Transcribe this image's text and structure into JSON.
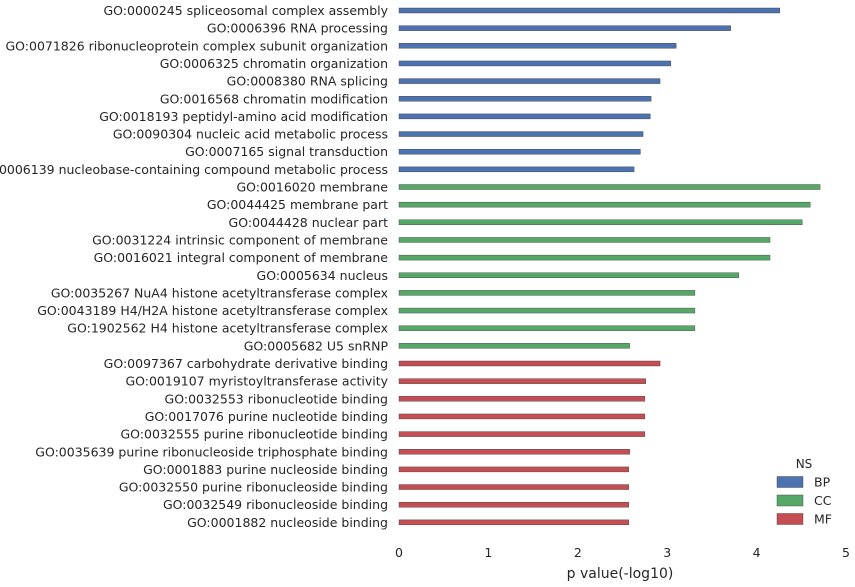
{
  "chart_data": {
    "type": "bar",
    "orientation": "horizontal",
    "xlabel": "p value(-log10)",
    "ylabel": "",
    "title": "",
    "xlim": [
      0,
      5
    ],
    "xticks": [
      0,
      1,
      2,
      3,
      4,
      5
    ],
    "grid": false,
    "legend": {
      "title": "NS",
      "position": "bottom-right"
    },
    "series": [
      {
        "name": "BP",
        "color": "#4c72b0",
        "categories": [
          "GO:0000245 spliceosomal complex assembly",
          "GO:0006396 RNA processing",
          "GO:0071826 ribonucleoprotein complex subunit organization",
          "GO:0006325 chromatin organization",
          "GO:0008380 RNA splicing",
          "GO:0016568 chromatin modification",
          "GO:0018193 peptidyl-amino acid modification",
          "GO:0090304 nucleic acid metabolic process",
          "GO:0007165 signal transduction",
          "GO:0006139 nucleobase-containing compound metabolic process"
        ],
        "values": [
          4.26,
          3.71,
          3.1,
          3.04,
          2.92,
          2.82,
          2.81,
          2.73,
          2.7,
          2.63
        ]
      },
      {
        "name": "CC",
        "color": "#55a868",
        "categories": [
          "GO:0016020 membrane",
          "GO:0044425 membrane part",
          "GO:0044428 nuclear part",
          "GO:0031224 intrinsic component of membrane",
          "GO:0016021 integral component of membrane",
          "GO:0005634 nucleus",
          "GO:0035267 NuA4 histone acetyltransferase complex",
          "GO:0043189 H4/H2A histone acetyltransferase complex",
          "GO:1902562 H4 histone acetyltransferase complex",
          "GO:0005682 U5 snRNP"
        ],
        "values": [
          4.71,
          4.6,
          4.51,
          4.15,
          4.15,
          3.8,
          3.31,
          3.31,
          3.31,
          2.58
        ]
      },
      {
        "name": "MF",
        "color": "#c44e52",
        "categories": [
          "GO:0097367 carbohydrate derivative binding",
          "GO:0019107 myristoyltransferase activity",
          "GO:0032553 ribonucleotide binding",
          "GO:0017076 purine nucleotide binding",
          "GO:0032555 purine ribonucleotide binding",
          "GO:0035639 purine ribonucleoside triphosphate binding",
          "GO:0001883 purine nucleoside binding",
          "GO:0032550 purine ribonucleoside binding",
          "GO:0032549 ribonucleoside binding",
          "GO:0001882 nucleoside binding"
        ],
        "values": [
          2.92,
          2.76,
          2.75,
          2.75,
          2.75,
          2.58,
          2.57,
          2.57,
          2.57,
          2.57
        ]
      }
    ]
  }
}
